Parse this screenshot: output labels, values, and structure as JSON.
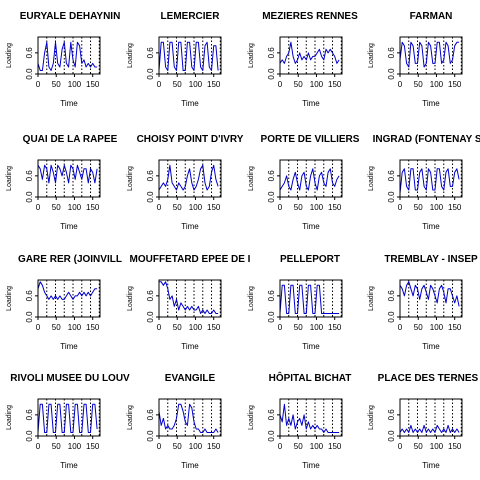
{
  "figure": {
    "xlabel": "Time",
    "ylabel": "Loading",
    "x_ticks": [
      0,
      50,
      100,
      150
    ],
    "y_ticks": [
      0.0,
      0.6
    ],
    "y_tick_labels": [
      "0.0",
      "0.6"
    ],
    "xlim": [
      0,
      170
    ],
    "ylim": [
      0,
      1.05
    ],
    "vlines": [
      24,
      48,
      72,
      96,
      120,
      144,
      168
    ],
    "vline_style": "dotted",
    "line_color": "#0000cd"
  },
  "chart_data": [
    {
      "type": "line",
      "title": "EURYALE DEHAYNIN",
      "xlabel": "Time",
      "ylabel": "Loading",
      "ylim": [
        0,
        1.05
      ],
      "x_step": 6,
      "values": [
        0.3,
        0.1,
        0.1,
        0.6,
        0.9,
        0.2,
        0.1,
        0.3,
        0.9,
        0.3,
        0.2,
        0.7,
        0.9,
        0.3,
        0.2,
        0.9,
        0.4,
        0.2,
        0.9,
        0.8,
        0.3,
        0.4,
        0.2,
        0.3,
        0.2,
        0.3,
        0.2,
        0.2
      ]
    },
    {
      "type": "line",
      "title": "LEMERCIER",
      "xlabel": "Time",
      "ylabel": "Loading",
      "ylim": [
        0,
        1.05
      ],
      "x_step": 6,
      "values": [
        0.1,
        0.9,
        0.9,
        0.2,
        0.1,
        0.9,
        0.9,
        0.2,
        0.1,
        0.9,
        0.9,
        0.1,
        0.1,
        0.9,
        0.9,
        0.2,
        0.1,
        0.9,
        0.9,
        0.2,
        0.1,
        0.8,
        0.9,
        0.2,
        0.1,
        0.8,
        0.8,
        0.1
      ]
    },
    {
      "type": "line",
      "title": "MEZIERES RENNES",
      "xlabel": "Time",
      "ylabel": "Loading",
      "ylim": [
        0,
        1.05
      ],
      "x_step": 6,
      "values": [
        0.3,
        0.4,
        0.3,
        0.5,
        0.6,
        0.9,
        0.5,
        0.3,
        0.4,
        0.6,
        0.4,
        0.5,
        0.4,
        0.6,
        0.4,
        0.5,
        0.5,
        0.6,
        0.7,
        0.5,
        0.4,
        0.7,
        0.6,
        0.7,
        0.6,
        0.5,
        0.3,
        0.4
      ]
    },
    {
      "type": "line",
      "title": "FARMAN",
      "xlabel": "Time",
      "ylabel": "Loading",
      "ylim": [
        0,
        1.05
      ],
      "x_step": 6,
      "values": [
        0.4,
        0.9,
        0.8,
        0.3,
        0.2,
        0.9,
        0.8,
        0.3,
        0.3,
        0.9,
        0.8,
        0.2,
        0.3,
        0.9,
        0.8,
        0.3,
        0.3,
        0.9,
        0.9,
        0.3,
        0.4,
        0.9,
        0.8,
        0.3,
        0.4,
        0.8,
        0.9,
        0.9
      ]
    },
    {
      "type": "line",
      "title": "QUAI DE LA RAPEE",
      "xlabel": "Time",
      "ylabel": "Loading",
      "ylim": [
        0,
        1.05
      ],
      "x_step": 6,
      "values": [
        0.9,
        0.8,
        0.5,
        0.9,
        0.8,
        0.4,
        0.9,
        0.7,
        0.4,
        0.9,
        0.8,
        0.6,
        0.9,
        0.7,
        0.4,
        0.9,
        0.8,
        0.5,
        0.9,
        0.7,
        0.5,
        0.8,
        0.8,
        0.4,
        0.8,
        0.7,
        0.4,
        0.8
      ]
    },
    {
      "type": "line",
      "title": "CHOISY POINT D'IVRY",
      "xlabel": "Time",
      "ylabel": "Loading",
      "ylim": [
        0,
        1.05
      ],
      "x_step": 6,
      "values": [
        0.2,
        0.3,
        0.4,
        0.3,
        0.5,
        0.9,
        0.4,
        0.3,
        0.2,
        0.4,
        0.3,
        0.2,
        0.3,
        0.6,
        0.8,
        0.4,
        0.2,
        0.3,
        0.5,
        0.8,
        0.9,
        0.4,
        0.2,
        0.3,
        0.7,
        0.9,
        0.5,
        0.3
      ]
    },
    {
      "type": "line",
      "title": "PORTE DE VILLIERS",
      "xlabel": "Time",
      "ylabel": "Loading",
      "ylim": [
        0,
        1.05
      ],
      "x_step": 6,
      "values": [
        0.2,
        0.3,
        0.4,
        0.6,
        0.3,
        0.2,
        0.5,
        0.7,
        0.4,
        0.2,
        0.6,
        0.7,
        0.3,
        0.2,
        0.6,
        0.8,
        0.4,
        0.2,
        0.6,
        0.7,
        0.4,
        0.3,
        0.7,
        0.8,
        0.4,
        0.3,
        0.5,
        0.6
      ]
    },
    {
      "type": "line",
      "title": "INGRAD (FONTENAY SO",
      "xlabel": "Time",
      "ylabel": "Loading",
      "ylim": [
        0,
        1.05
      ],
      "x_step": 6,
      "values": [
        0.1,
        0.7,
        0.8,
        0.3,
        0.2,
        0.8,
        0.8,
        0.2,
        0.2,
        0.7,
        0.8,
        0.3,
        0.2,
        0.8,
        0.7,
        0.2,
        0.2,
        0.8,
        0.8,
        0.3,
        0.2,
        0.7,
        0.8,
        0.3,
        0.3,
        0.7,
        0.8,
        0.5
      ]
    },
    {
      "type": "line",
      "title": "GARE RER (JOINVILL",
      "xlabel": "Time",
      "ylabel": "Loading",
      "ylim": [
        0,
        1.05
      ],
      "x_step": 6,
      "values": [
        0.8,
        1.0,
        0.9,
        0.7,
        0.6,
        0.5,
        0.6,
        0.5,
        0.6,
        0.5,
        0.6,
        0.5,
        0.5,
        0.6,
        0.7,
        0.6,
        0.5,
        0.6,
        0.6,
        0.7,
        0.6,
        0.7,
        0.6,
        0.7,
        0.6,
        0.7,
        0.8,
        0.8
      ]
    },
    {
      "type": "line",
      "title": "MOUFFETARD EPEE DE I",
      "xlabel": "Time",
      "ylabel": "Loading",
      "ylim": [
        0,
        1.05
      ],
      "x_step": 6,
      "values": [
        1.0,
        1.0,
        0.9,
        1.0,
        0.8,
        0.5,
        0.6,
        0.3,
        0.5,
        0.2,
        0.4,
        0.3,
        0.2,
        0.3,
        0.2,
        0.3,
        0.2,
        0.2,
        0.3,
        0.1,
        0.2,
        0.1,
        0.2,
        0.1,
        0.1,
        0.2,
        0.1,
        0.1
      ]
    },
    {
      "type": "line",
      "title": "PELLEPORT",
      "xlabel": "Time",
      "ylabel": "Loading",
      "ylim": [
        0,
        1.05
      ],
      "x_step": 6,
      "values": [
        0.1,
        0.9,
        0.9,
        0.1,
        0.1,
        0.9,
        0.9,
        0.1,
        0.1,
        0.9,
        0.9,
        0.1,
        0.1,
        0.9,
        0.9,
        0.1,
        0.1,
        0.9,
        0.9,
        0.1,
        0.1,
        0.1,
        0.1,
        0.1,
        0.1,
        0.1,
        0.1,
        0.1
      ]
    },
    {
      "type": "line",
      "title": "TREMBLAY - INSEP",
      "xlabel": "Time",
      "ylabel": "Loading",
      "ylim": [
        0,
        1.05
      ],
      "x_step": 6,
      "values": [
        0.9,
        0.8,
        0.6,
        0.9,
        1.0,
        0.8,
        0.6,
        0.9,
        0.8,
        0.5,
        0.8,
        0.9,
        0.7,
        0.5,
        0.9,
        0.8,
        0.6,
        0.4,
        0.8,
        0.9,
        0.7,
        0.4,
        0.8,
        0.8,
        0.6,
        0.4,
        0.6,
        0.3
      ]
    },
    {
      "type": "line",
      "title": "RIVOLI MUSEE DU LOUV",
      "xlabel": "Time",
      "ylabel": "Loading",
      "ylim": [
        0,
        1.05
      ],
      "x_step": 6,
      "values": [
        0.1,
        0.9,
        0.9,
        0.1,
        0.1,
        0.9,
        0.9,
        0.1,
        0.1,
        0.9,
        0.9,
        0.1,
        0.1,
        0.9,
        0.9,
        0.1,
        0.1,
        0.9,
        0.9,
        0.1,
        0.1,
        0.9,
        0.9,
        0.1,
        0.1,
        0.9,
        0.9,
        0.2
      ]
    },
    {
      "type": "line",
      "title": "EVANGILE",
      "xlabel": "Time",
      "ylabel": "Loading",
      "ylim": [
        0,
        1.05
      ],
      "x_step": 6,
      "values": [
        0.7,
        0.3,
        0.5,
        0.2,
        0.3,
        0.2,
        0.2,
        0.3,
        0.5,
        0.9,
        0.9,
        0.7,
        0.4,
        0.3,
        0.9,
        0.8,
        0.4,
        0.2,
        0.2,
        0.1,
        0.1,
        0.2,
        0.1,
        0.1,
        0.1,
        0.1,
        0.2,
        0.1
      ]
    },
    {
      "type": "line",
      "title": "HÔPITAL BICHAT",
      "xlabel": "Time",
      "ylabel": "Loading",
      "ylim": [
        0,
        1.05
      ],
      "x_step": 6,
      "values": [
        0.6,
        0.4,
        0.9,
        0.3,
        0.5,
        0.3,
        0.6,
        0.2,
        0.4,
        0.5,
        0.3,
        0.6,
        0.2,
        0.4,
        0.2,
        0.3,
        0.2,
        0.3,
        0.2,
        0.2,
        0.1,
        0.2,
        0.1,
        0.1,
        0.1,
        0.1,
        0.1,
        0.1
      ]
    },
    {
      "type": "line",
      "title": "PLACE DES TERNES -",
      "xlabel": "Time",
      "ylabel": "Loading",
      "ylim": [
        0,
        1.05
      ],
      "x_step": 6,
      "values": [
        0.1,
        0.2,
        0.1,
        0.2,
        0.1,
        0.3,
        0.1,
        0.2,
        0.1,
        0.2,
        0.1,
        0.3,
        0.1,
        0.2,
        0.1,
        0.2,
        0.1,
        0.3,
        0.2,
        0.1,
        0.2,
        0.1,
        0.3,
        0.1,
        0.2,
        0.1,
        0.2,
        0.1
      ]
    }
  ]
}
